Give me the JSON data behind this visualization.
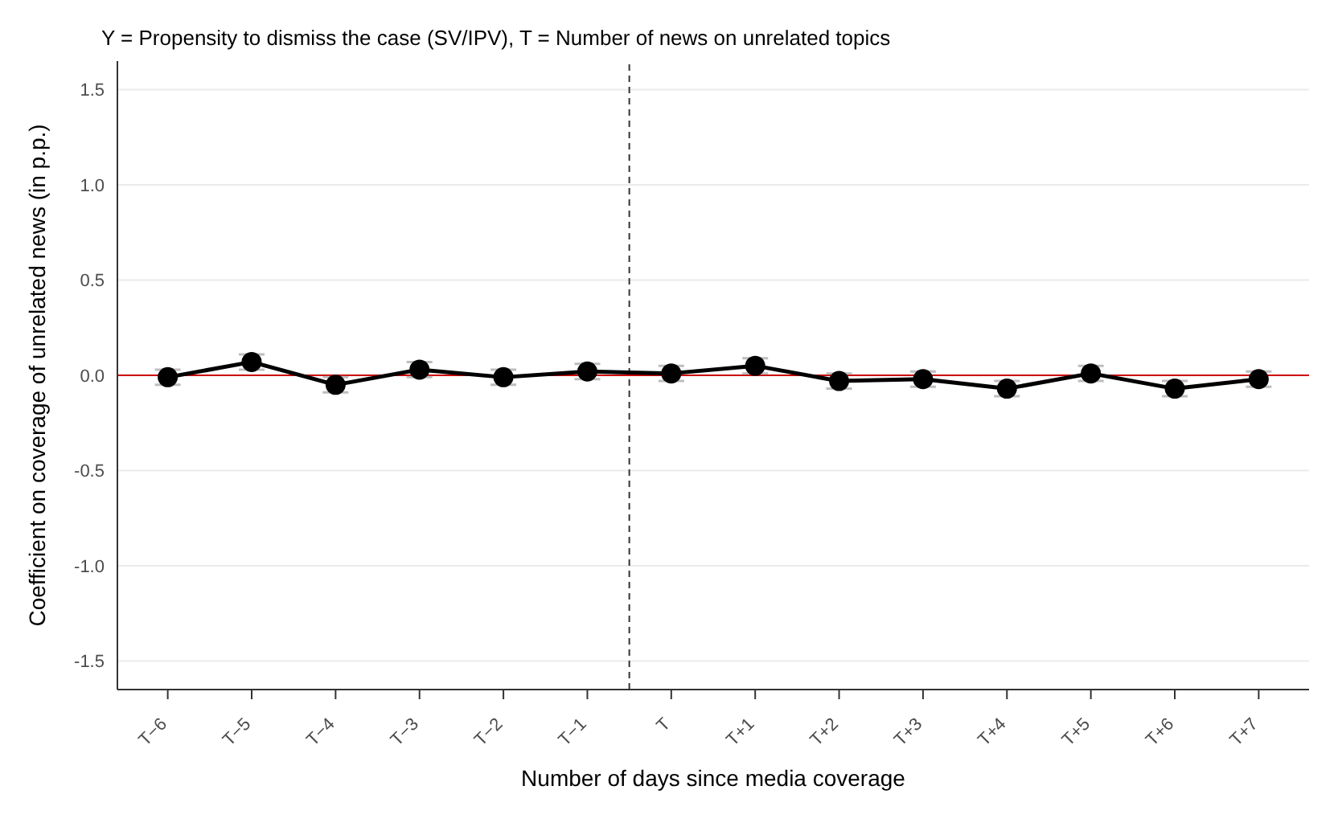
{
  "chart_data": {
    "type": "line",
    "title": "Y = Propensity to dismiss the case (SV/IPV), T = Number of news on unrelated topics",
    "xlabel": "Number of days since media coverage",
    "ylabel": "Coefficient on coverage of unrelated news (in p.p.)",
    "categories": [
      "T−6",
      "T−5",
      "T−4",
      "T−3",
      "T−2",
      "T−1",
      "T",
      "T+1",
      "T+2",
      "T+3",
      "T+4",
      "T+5",
      "T+6",
      "T+7"
    ],
    "series": [
      {
        "color": "#000000",
        "values": [
          -0.01,
          0.07,
          -0.05,
          0.03,
          -0.01,
          0.02,
          0.01,
          0.05,
          -0.03,
          -0.02,
          -0.07,
          0.01,
          -0.07,
          -0.02
        ],
        "errors": [
          0.04,
          0.04,
          0.04,
          0.04,
          0.04,
          0.04,
          0.04,
          0.04,
          0.04,
          0.04,
          0.04,
          0.04,
          0.04,
          0.04
        ]
      }
    ],
    "ylim": [
      -1.65,
      1.65
    ],
    "yticks": [
      -1.5,
      {
        "value": -1,
        "label": "-1.0"
      },
      -0.5,
      {
        "value": 0,
        "label": "0.0"
      },
      0.5,
      {
        "value": 1,
        "label": "1.0"
      },
      1.5
    ],
    "ref_lines": [
      {
        "axis": "y",
        "value": 0,
        "color": "#cc0000",
        "line_style": "solid"
      },
      {
        "axis": "x",
        "value": "T",
        "color": "#333333",
        "line_style": "dashed"
      }
    ],
    "grid": "y",
    "marker": "circle",
    "line_style": "solid"
  }
}
